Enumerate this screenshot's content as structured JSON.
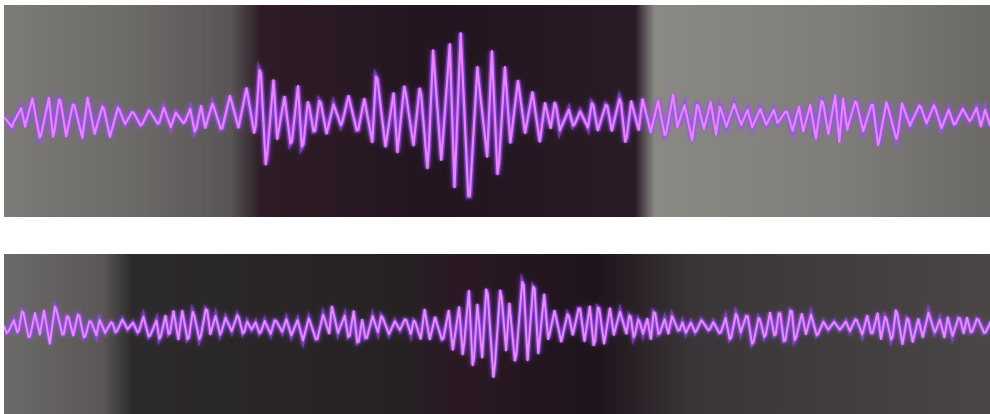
{
  "colors": {
    "trace": "#e070ff",
    "trace_glow": "#b04cff",
    "trace_edge": "#6a6cff",
    "bg_light": "#8a8885",
    "bg_mid": "#4a4648",
    "bg_dark": "#2a1a24",
    "separator": "#ffffff"
  },
  "strips": [
    {
      "id": "top",
      "description_visible": false,
      "panels": [
        "light-left",
        "dark-center",
        "light-right"
      ]
    },
    {
      "id": "bottom",
      "description_visible": false,
      "panels": [
        "light-left",
        "dark-center",
        "dark-right"
      ]
    }
  ]
}
